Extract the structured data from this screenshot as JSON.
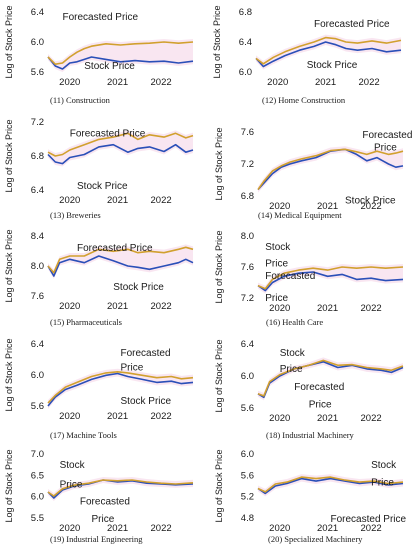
{
  "colors": {
    "stock": "#2a4fb8",
    "forecast": "#d1a02e",
    "band": "#f4d2e6"
  },
  "chart_data": [
    {
      "type": "line",
      "caption": "(11) Construction",
      "ylabel": "Log of Stock Price",
      "yticks": [
        "6.4",
        "6.0",
        "5.6"
      ],
      "ylim": [
        5.45,
        6.45
      ],
      "xticks": [
        "2020",
        "2021",
        "2022"
      ],
      "series": [
        {
          "name": "Stock Price",
          "label_text": "Stock Price",
          "x": [
            0.0,
            0.05,
            0.1,
            0.15,
            0.2,
            0.25,
            0.3,
            0.4,
            0.5,
            0.6,
            0.7,
            0.8,
            0.9,
            1.0
          ],
          "y": [
            5.7,
            5.55,
            5.5,
            5.6,
            5.62,
            5.66,
            5.7,
            5.66,
            5.62,
            5.64,
            5.62,
            5.63,
            5.6,
            5.63
          ]
        },
        {
          "name": "Forecasted Price",
          "label_text": "Forecasted Price",
          "x": [
            0.0,
            0.05,
            0.1,
            0.15,
            0.2,
            0.25,
            0.3,
            0.4,
            0.5,
            0.6,
            0.7,
            0.8,
            0.9,
            1.0
          ],
          "y": [
            5.7,
            5.58,
            5.6,
            5.7,
            5.78,
            5.84,
            5.88,
            5.92,
            5.9,
            5.92,
            5.93,
            5.95,
            5.93,
            5.95
          ]
        }
      ]
    },
    {
      "type": "line",
      "caption": "(12) Home Construction",
      "ylabel": "Log of Stock Price",
      "yticks": [
        "6.8",
        "6.4",
        "6.0"
      ],
      "ylim": [
        5.75,
        6.85
      ],
      "xticks": [
        "2020",
        "2021",
        "2022"
      ],
      "series": [
        {
          "name": "Stock Price",
          "label_text": "Stock Price",
          "x": [
            0.0,
            0.05,
            0.12,
            0.2,
            0.3,
            0.4,
            0.48,
            0.55,
            0.62,
            0.7,
            0.8,
            0.9,
            1.0
          ],
          "y": [
            6.0,
            5.85,
            5.95,
            6.05,
            6.15,
            6.22,
            6.3,
            6.25,
            6.18,
            6.15,
            6.18,
            6.12,
            6.15
          ]
        },
        {
          "name": "Forecasted Price",
          "label_text": "Forecasted Price",
          "x": [
            0.0,
            0.05,
            0.12,
            0.2,
            0.3,
            0.4,
            0.48,
            0.55,
            0.62,
            0.7,
            0.8,
            0.9,
            1.0
          ],
          "y": [
            6.0,
            5.9,
            6.02,
            6.12,
            6.22,
            6.3,
            6.38,
            6.36,
            6.3,
            6.28,
            6.32,
            6.28,
            6.33
          ]
        }
      ]
    },
    {
      "type": "line",
      "caption": "(13) Breweries",
      "ylabel": "Log of Stock Price",
      "yticks": [
        "7.2",
        "6.8",
        "6.4"
      ],
      "ylim": [
        6.35,
        7.25
      ],
      "xticks": [
        "2020",
        "2021",
        "2022"
      ],
      "series": [
        {
          "name": "Stock Price",
          "label_text": "Stock Price",
          "x": [
            0.0,
            0.05,
            0.1,
            0.15,
            0.25,
            0.35,
            0.45,
            0.55,
            0.62,
            0.7,
            0.8,
            0.88,
            0.95,
            1.0
          ],
          "y": [
            6.82,
            6.72,
            6.7,
            6.78,
            6.82,
            6.92,
            6.95,
            6.85,
            6.9,
            6.92,
            6.86,
            6.95,
            6.85,
            6.88
          ]
        },
        {
          "name": "Forecasted Price",
          "label_text": "Forecasted Price",
          "x": [
            0.0,
            0.05,
            0.1,
            0.15,
            0.25,
            0.35,
            0.45,
            0.55,
            0.62,
            0.7,
            0.8,
            0.88,
            0.95,
            1.0
          ],
          "y": [
            6.85,
            6.8,
            6.82,
            6.88,
            6.95,
            7.02,
            7.05,
            7.1,
            7.02,
            7.08,
            7.05,
            7.1,
            7.04,
            7.07
          ]
        }
      ]
    },
    {
      "type": "line",
      "caption": "(14) Medical Equipment",
      "ylabel": "Log of Stock Price",
      "yticks": [
        "7.6",
        "7.2",
        "6.8"
      ],
      "ylim": [
        6.75,
        7.75
      ],
      "xticks": [
        "2020",
        "2021",
        "2022"
      ],
      "series": [
        {
          "name": "Stock Price",
          "label_text": "Stock Price",
          "x": [
            0.0,
            0.04,
            0.1,
            0.16,
            0.22,
            0.3,
            0.4,
            0.5,
            0.6,
            0.68,
            0.75,
            0.82,
            0.9,
            0.95,
            1.0
          ],
          "y": [
            6.85,
            6.95,
            7.1,
            7.2,
            7.25,
            7.3,
            7.35,
            7.45,
            7.48,
            7.4,
            7.3,
            7.35,
            7.25,
            7.2,
            7.22
          ]
        },
        {
          "name": "Forecasted Price",
          "label_text": "Forecasted Price",
          "x": [
            0.0,
            0.04,
            0.1,
            0.16,
            0.22,
            0.3,
            0.4,
            0.5,
            0.6,
            0.68,
            0.75,
            0.82,
            0.9,
            0.95,
            1.0
          ],
          "y": [
            6.85,
            6.98,
            7.14,
            7.22,
            7.28,
            7.33,
            7.38,
            7.46,
            7.48,
            7.44,
            7.4,
            7.45,
            7.4,
            7.42,
            7.45
          ]
        }
      ]
    },
    {
      "type": "line",
      "caption": "(15) Pharmaceuticals",
      "ylabel": "Log of Stock Price",
      "yticks": [
        "8.4",
        "8.0",
        "7.6"
      ],
      "ylim": [
        7.55,
        8.45
      ],
      "xticks": [
        "2020",
        "2021",
        "2022"
      ],
      "series": [
        {
          "name": "Stock Price",
          "label_text": "Stock Price",
          "x": [
            0.0,
            0.04,
            0.08,
            0.15,
            0.25,
            0.35,
            0.45,
            0.55,
            0.62,
            0.7,
            0.8,
            0.9,
            0.95,
            1.0
          ],
          "y": [
            8.0,
            7.85,
            8.05,
            8.1,
            8.05,
            8.15,
            8.08,
            8.0,
            7.98,
            7.95,
            8.0,
            8.05,
            8.1,
            8.05
          ]
        },
        {
          "name": "Forecasted Price",
          "label_text": "Forecasted Price",
          "x": [
            0.0,
            0.04,
            0.08,
            0.15,
            0.25,
            0.35,
            0.45,
            0.55,
            0.62,
            0.7,
            0.8,
            0.9,
            0.95,
            1.0
          ],
          "y": [
            8.0,
            7.9,
            8.1,
            8.15,
            8.15,
            8.25,
            8.22,
            8.25,
            8.2,
            8.22,
            8.2,
            8.25,
            8.28,
            8.25
          ]
        }
      ]
    },
    {
      "type": "line",
      "caption": "(16) Health Care",
      "ylabel": "Log of Stock Price",
      "yticks": [
        "8.0",
        "7.6",
        "7.2"
      ],
      "ylim": [
        7.1,
        8.1
      ],
      "xticks": [
        "2020",
        "2021",
        "2022"
      ],
      "series": [
        {
          "name": "Stock Price",
          "label_text": "Stock Price",
          "x": [
            0.0,
            0.05,
            0.1,
            0.18,
            0.28,
            0.38,
            0.48,
            0.58,
            0.68,
            0.78,
            0.88,
            1.0
          ],
          "y": [
            7.3,
            7.22,
            7.35,
            7.45,
            7.5,
            7.52,
            7.45,
            7.48,
            7.4,
            7.42,
            7.38,
            7.4
          ]
        },
        {
          "name": "Forecasted Price",
          "label_text": "Forecasted Price",
          "x": [
            0.0,
            0.05,
            0.1,
            0.18,
            0.28,
            0.38,
            0.48,
            0.58,
            0.68,
            0.78,
            0.88,
            1.0
          ],
          "y": [
            7.3,
            7.25,
            7.4,
            7.5,
            7.55,
            7.58,
            7.55,
            7.6,
            7.58,
            7.6,
            7.58,
            7.6
          ]
        }
      ]
    },
    {
      "type": "line",
      "caption": "(17) Machine Tools",
      "ylabel": "Log of Stock Price",
      "yticks": [
        "6.4",
        "6.0",
        "5.6"
      ],
      "ylim": [
        5.4,
        6.45
      ],
      "xticks": [
        "2020",
        "2021",
        "2022"
      ],
      "series": [
        {
          "name": "Stock Price",
          "label_text": "Stock Price",
          "x": [
            0.0,
            0.05,
            0.12,
            0.2,
            0.3,
            0.4,
            0.48,
            0.55,
            0.65,
            0.75,
            0.85,
            0.92,
            1.0
          ],
          "y": [
            5.4,
            5.55,
            5.68,
            5.75,
            5.85,
            5.92,
            5.95,
            5.9,
            5.85,
            5.8,
            5.82,
            5.78,
            5.8
          ]
        },
        {
          "name": "Forecasted Price",
          "label_text": "Forecasted Price",
          "x": [
            0.0,
            0.05,
            0.12,
            0.2,
            0.3,
            0.4,
            0.48,
            0.55,
            0.65,
            0.75,
            0.85,
            0.92,
            1.0
          ],
          "y": [
            5.45,
            5.58,
            5.72,
            5.8,
            5.9,
            5.96,
            5.98,
            5.96,
            5.92,
            5.88,
            5.9,
            5.86,
            5.88
          ]
        }
      ]
    },
    {
      "type": "line",
      "caption": "(18) Industrial Machinery",
      "ylabel": "Log of Stock Price",
      "yticks": [
        "6.4",
        "6.0",
        "5.6"
      ],
      "ylim": [
        5.55,
        6.45
      ],
      "xticks": [
        "2020",
        "2021",
        "2022"
      ],
      "series": [
        {
          "name": "Stock Price",
          "label_text": "Stock Price",
          "x": [
            0.0,
            0.04,
            0.08,
            0.15,
            0.25,
            0.35,
            0.45,
            0.55,
            0.65,
            0.75,
            0.85,
            0.92,
            1.0
          ],
          "y": [
            5.75,
            5.7,
            5.9,
            6.0,
            6.1,
            6.15,
            6.2,
            6.12,
            6.15,
            6.1,
            6.08,
            6.05,
            6.12
          ]
        },
        {
          "name": "Forecasted Price",
          "label_text": "Forecasted Price",
          "x": [
            0.0,
            0.04,
            0.08,
            0.15,
            0.25,
            0.35,
            0.45,
            0.55,
            0.65,
            0.75,
            0.85,
            0.92,
            1.0
          ],
          "y": [
            5.75,
            5.72,
            5.92,
            6.02,
            6.1,
            6.15,
            6.22,
            6.15,
            6.16,
            6.12,
            6.1,
            6.08,
            6.14
          ]
        }
      ]
    },
    {
      "type": "line",
      "caption": "(19) Industrial Engineering",
      "ylabel": "Log of Stock Price",
      "yticks": [
        "7.0",
        "6.5",
        "6.0",
        "5.5"
      ],
      "ylim": [
        5.45,
        7.05
      ],
      "xticks": [
        "2020",
        "2021",
        "2022"
      ],
      "series": [
        {
          "name": "Stock Price",
          "label_text": "Stock Price",
          "x": [
            0.0,
            0.04,
            0.1,
            0.18,
            0.28,
            0.38,
            0.48,
            0.58,
            0.68,
            0.78,
            0.88,
            1.0
          ],
          "y": [
            6.1,
            5.95,
            6.15,
            6.25,
            6.3,
            6.4,
            6.35,
            6.38,
            6.32,
            6.3,
            6.28,
            6.3
          ]
        },
        {
          "name": "Forecasted Price",
          "label_text": "Forecasted Price",
          "x": [
            0.0,
            0.04,
            0.1,
            0.18,
            0.28,
            0.38,
            0.48,
            0.58,
            0.68,
            0.78,
            0.88,
            1.0
          ],
          "y": [
            6.1,
            6.0,
            6.18,
            6.27,
            6.32,
            6.4,
            6.38,
            6.4,
            6.35,
            6.32,
            6.3,
            6.33
          ]
        }
      ]
    },
    {
      "type": "line",
      "caption": "(20) Specialized Machinery",
      "ylabel": "Log of Stock Price",
      "yticks": [
        "6.0",
        "5.6",
        "5.2",
        "4.8"
      ],
      "ylim": [
        4.75,
        6.05
      ],
      "xticks": [
        "2020",
        "2021",
        "2022"
      ],
      "series": [
        {
          "name": "Stock Price",
          "label_text": "Stock Price",
          "x": [
            0.0,
            0.05,
            0.12,
            0.2,
            0.3,
            0.4,
            0.5,
            0.6,
            0.7,
            0.8,
            0.9,
            1.0
          ],
          "y": [
            5.35,
            5.25,
            5.4,
            5.45,
            5.55,
            5.5,
            5.55,
            5.5,
            5.45,
            5.48,
            5.42,
            5.45
          ]
        },
        {
          "name": "Forecasted Price",
          "label_text": "Forecasted Price",
          "x": [
            0.0,
            0.05,
            0.12,
            0.2,
            0.3,
            0.4,
            0.5,
            0.6,
            0.7,
            0.8,
            0.9,
            1.0
          ],
          "y": [
            5.35,
            5.28,
            5.44,
            5.48,
            5.58,
            5.55,
            5.58,
            5.52,
            5.48,
            5.5,
            5.45,
            5.48
          ]
        }
      ]
    }
  ]
}
